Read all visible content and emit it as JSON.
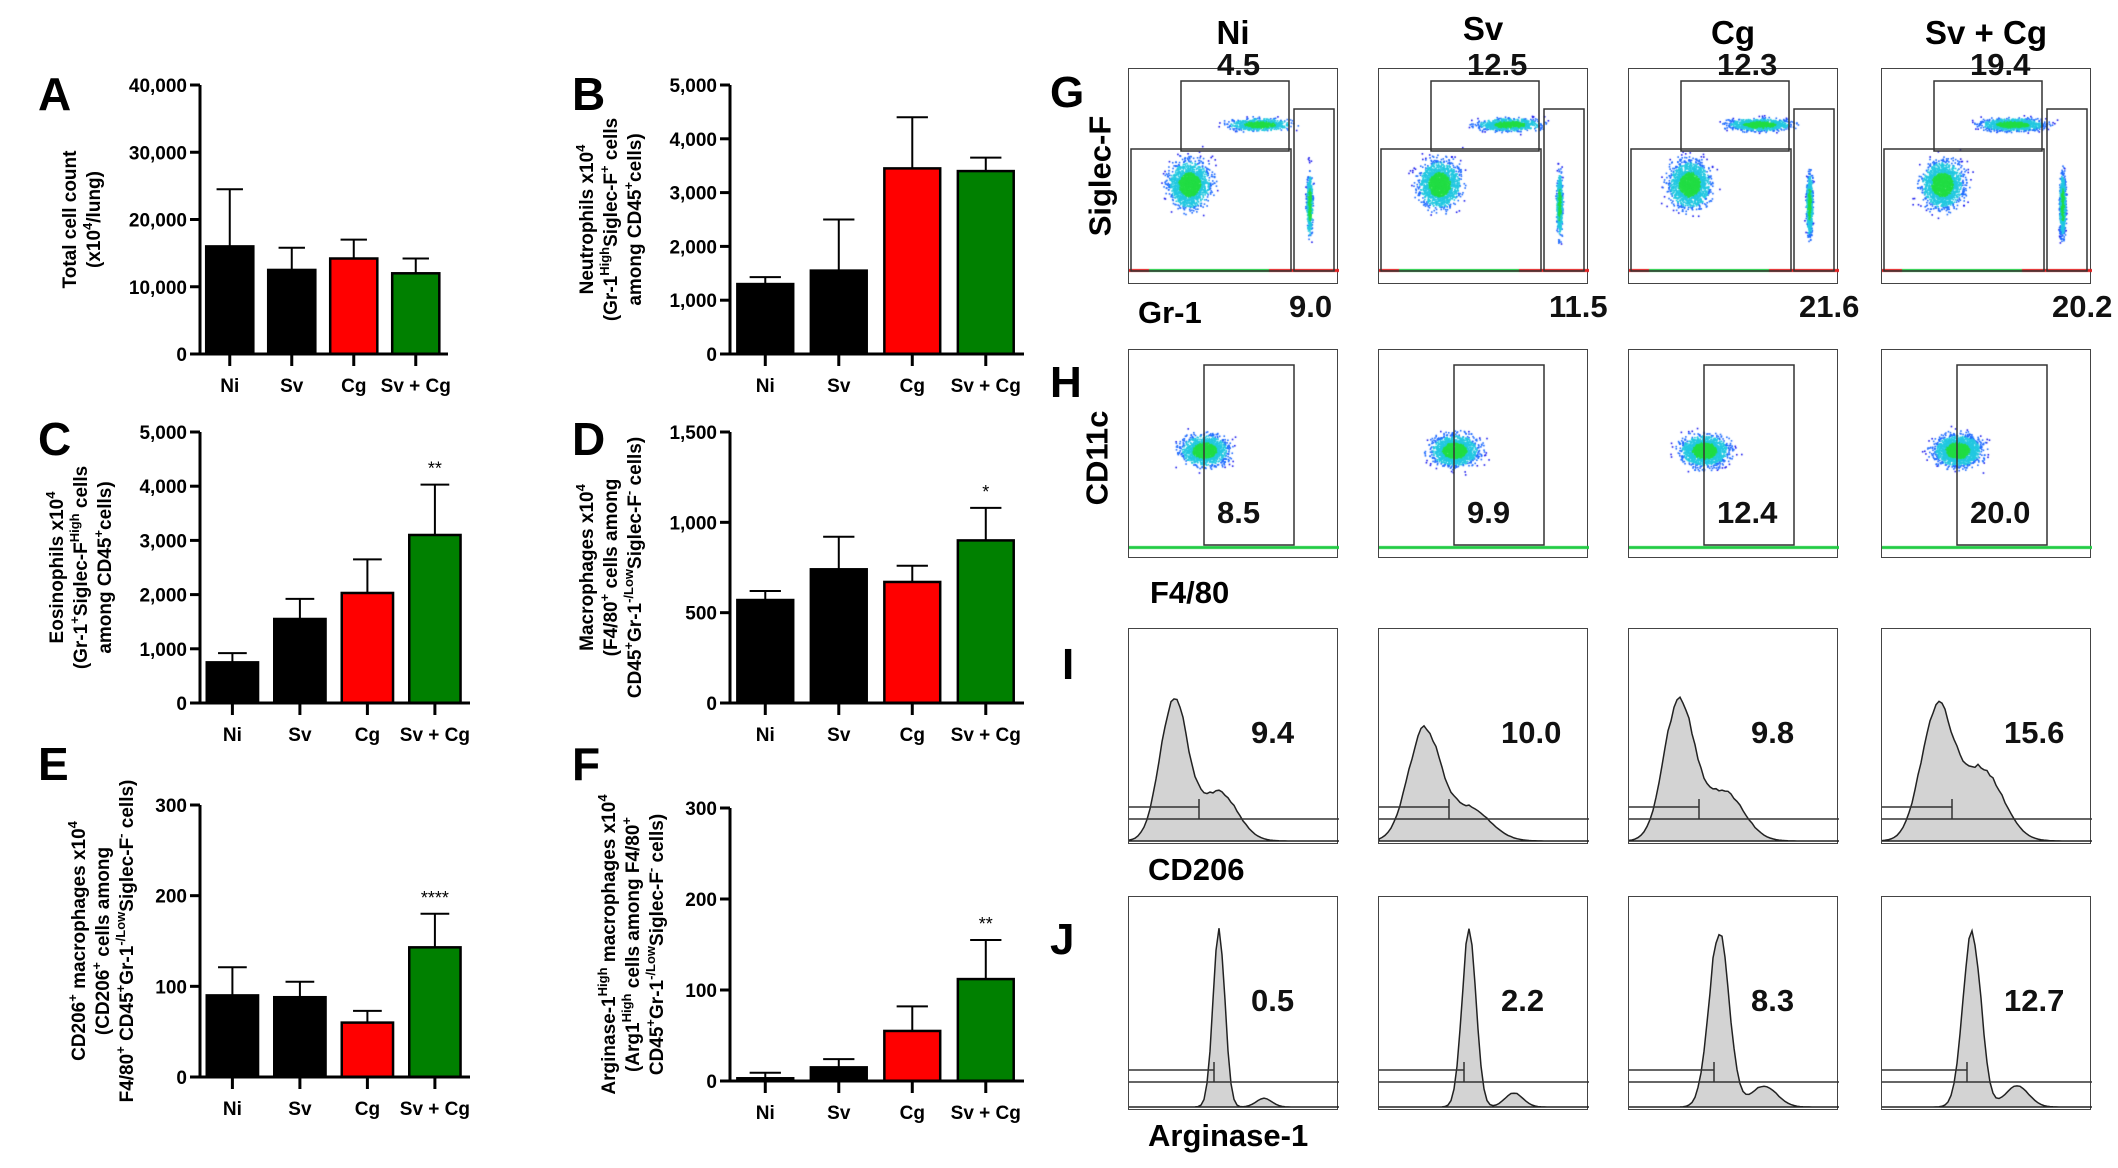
{
  "chart_data": [
    {
      "panel": "A",
      "type": "bar",
      "categories": [
        "Ni",
        "Sv",
        "Cg",
        "Sv + Cg"
      ],
      "values": [
        16000,
        12500,
        14200,
        12000
      ],
      "errors": [
        8500,
        3300,
        2800,
        2200
      ],
      "colors": [
        "#000000",
        "#000000",
        "#ff0000",
        "#008000"
      ],
      "ylim": [
        0,
        40000
      ],
      "yticks": [
        "0",
        "10,000",
        "20,000",
        "30,000",
        "40,000"
      ],
      "ytick_values": [
        0,
        10000,
        20000,
        30000,
        40000
      ],
      "annotations": [
        "",
        "",
        "",
        ""
      ],
      "ylabel": [
        [
          {
            "t": "Total cell count"
          }
        ],
        [
          {
            "t": "(x10"
          },
          {
            "t": "4",
            "s": 1
          },
          {
            "t": "/lung)"
          }
        ]
      ]
    },
    {
      "panel": "B",
      "type": "bar",
      "categories": [
        "Ni",
        "Sv",
        "Cg",
        "Sv + Cg"
      ],
      "values": [
        1300,
        1550,
        3450,
        3400
      ],
      "errors": [
        130,
        950,
        950,
        250
      ],
      "colors": [
        "#000000",
        "#000000",
        "#ff0000",
        "#008000"
      ],
      "ylim": [
        0,
        5000
      ],
      "yticks": [
        "0",
        "1,000",
        "2,000",
        "3,000",
        "4,000",
        "5,000"
      ],
      "ytick_values": [
        0,
        1000,
        2000,
        3000,
        4000,
        5000
      ],
      "annotations": [
        "",
        "",
        "",
        ""
      ],
      "ylabel": [
        [
          {
            "t": "Neutrophils x10"
          },
          {
            "t": "4",
            "s": 1
          }
        ],
        [
          {
            "t": "(Gr-1"
          },
          {
            "t": "High",
            "s": 1
          },
          {
            "t": "Siglec-F"
          },
          {
            "t": "+",
            "s": 1
          },
          {
            "t": " cells"
          }
        ],
        [
          {
            "t": "among CD45"
          },
          {
            "t": "+",
            "s": 1
          },
          {
            "t": "cells)"
          }
        ]
      ]
    },
    {
      "panel": "C",
      "type": "bar",
      "categories": [
        "Ni",
        "Sv",
        "Cg",
        "Sv + Cg"
      ],
      "values": [
        750,
        1550,
        2030,
        3100
      ],
      "errors": [
        170,
        370,
        620,
        930
      ],
      "colors": [
        "#000000",
        "#000000",
        "#ff0000",
        "#008000"
      ],
      "ylim": [
        0,
        5000
      ],
      "yticks": [
        "0",
        "1,000",
        "2,000",
        "3,000",
        "4,000",
        "5,000"
      ],
      "ytick_values": [
        0,
        1000,
        2000,
        3000,
        4000,
        5000
      ],
      "annotations": [
        "",
        "",
        "",
        "**"
      ],
      "ylabel": [
        [
          {
            "t": "Eosinophils x10"
          },
          {
            "t": "4",
            "s": 1
          }
        ],
        [
          {
            "t": "(Gr-1"
          },
          {
            "t": "+",
            "s": 1
          },
          {
            "t": "Siglec-F"
          },
          {
            "t": "High",
            "s": 1
          },
          {
            "t": " cells"
          }
        ],
        [
          {
            "t": "among CD45"
          },
          {
            "t": "+",
            "s": 1
          },
          {
            "t": "cells)"
          }
        ]
      ]
    },
    {
      "panel": "D",
      "type": "bar",
      "categories": [
        "Ni",
        "Sv",
        "Cg",
        "Sv + Cg"
      ],
      "values": [
        570,
        740,
        670,
        900
      ],
      "errors": [
        50,
        180,
        90,
        180
      ],
      "colors": [
        "#000000",
        "#000000",
        "#ff0000",
        "#008000"
      ],
      "ylim": [
        0,
        1500
      ],
      "yticks": [
        "0",
        "500",
        "1,000",
        "1,500"
      ],
      "ytick_values": [
        0,
        500,
        1000,
        1500
      ],
      "annotations": [
        "",
        "",
        "",
        "*"
      ],
      "ylabel": [
        [
          {
            "t": "Macrophages x10"
          },
          {
            "t": "4",
            "s": 1
          }
        ],
        [
          {
            "t": "(F4/80"
          },
          {
            "t": "+",
            "s": 1
          },
          {
            "t": " cells among"
          }
        ],
        [
          {
            "t": "CD45"
          },
          {
            "t": "+",
            "s": 1
          },
          {
            "t": "Gr-1"
          },
          {
            "t": "-/Low",
            "s": 1
          },
          {
            "t": "Siglec-F"
          },
          {
            "t": "-",
            "s": 1
          },
          {
            "t": " cells)"
          }
        ]
      ]
    },
    {
      "panel": "E",
      "type": "bar",
      "categories": [
        "Ni",
        "Sv",
        "Cg",
        "Sv + Cg"
      ],
      "values": [
        90,
        88,
        60,
        143
      ],
      "errors": [
        31,
        17,
        13,
        37
      ],
      "colors": [
        "#000000",
        "#000000",
        "#ff0000",
        "#008000"
      ],
      "ylim": [
        0,
        300
      ],
      "yticks": [
        "0",
        "100",
        "200",
        "300"
      ],
      "ytick_values": [
        0,
        100,
        200,
        300
      ],
      "annotations": [
        "",
        "",
        "",
        "****"
      ],
      "ylabel": [
        [
          {
            "t": "CD206"
          },
          {
            "t": "+",
            "s": 1
          },
          {
            "t": " macrophages x10"
          },
          {
            "t": "4",
            "s": 1
          }
        ],
        [
          {
            "t": "(CD206"
          },
          {
            "t": "+",
            "s": 1
          },
          {
            "t": " cells among"
          }
        ],
        [
          {
            "t": "F4/80"
          },
          {
            "t": "+",
            "s": 1
          },
          {
            "t": " CD45"
          },
          {
            "t": "+",
            "s": 1
          },
          {
            "t": "Gr-1"
          },
          {
            "t": "-/Low",
            "s": 1
          },
          {
            "t": "Siglec-F"
          },
          {
            "t": "-",
            "s": 1
          },
          {
            "t": " cells)"
          }
        ]
      ]
    },
    {
      "panel": "F",
      "type": "bar",
      "categories": [
        "Ni",
        "Sv",
        "Cg",
        "Sv + Cg"
      ],
      "values": [
        3,
        15,
        55,
        112
      ],
      "errors": [
        6,
        9,
        27,
        43
      ],
      "colors": [
        "#000000",
        "#000000",
        "#ff0000",
        "#008000"
      ],
      "ylim": [
        0,
        300
      ],
      "yticks": [
        "0",
        "100",
        "200",
        "300"
      ],
      "ytick_values": [
        0,
        100,
        200,
        300
      ],
      "annotations": [
        "",
        "",
        "",
        "**"
      ],
      "ylabel": [
        [
          {
            "t": "Arginase-1"
          },
          {
            "t": "High",
            "s": 1
          },
          {
            "t": " macrophages x10"
          },
          {
            "t": "4",
            "s": 1
          }
        ],
        [
          {
            "t": "(Arg1"
          },
          {
            "t": "High",
            "s": 1
          },
          {
            "t": " cells among F4/80"
          },
          {
            "t": "+",
            "s": 1
          }
        ],
        [
          {
            "t": "CD45"
          },
          {
            "t": "+",
            "s": 1
          },
          {
            "t": "Gr-1"
          },
          {
            "t": "-/Low",
            "s": 1
          },
          {
            "t": "Siglec-F"
          },
          {
            "t": "-",
            "s": 1
          },
          {
            "t": " cells)"
          }
        ]
      ]
    }
  ],
  "flow": {
    "columns": [
      "Ni",
      "Sv",
      "Cg",
      "Sv + Cg"
    ],
    "G": {
      "letter": "G",
      "ylabel": "Siglec-F",
      "xlabel": "Gr-1",
      "top": [
        "4.5",
        "12.5",
        "12.3",
        "19.4"
      ],
      "right": [
        "9.0",
        "11.5",
        "21.6",
        "20.2"
      ]
    },
    "H": {
      "letter": "H",
      "ylabel": "CD11c",
      "xlabel": "F4/80",
      "values": [
        "8.5",
        "9.9",
        "12.4",
        "20.0"
      ]
    },
    "I": {
      "letter": "I",
      "xlabel": "CD206",
      "values": [
        "9.4",
        "10.0",
        "9.8",
        "15.6"
      ]
    },
    "J": {
      "letter": "J",
      "xlabel": "Arginase-1",
      "values": [
        "0.5",
        "2.2",
        "8.3",
        "12.7"
      ]
    }
  }
}
